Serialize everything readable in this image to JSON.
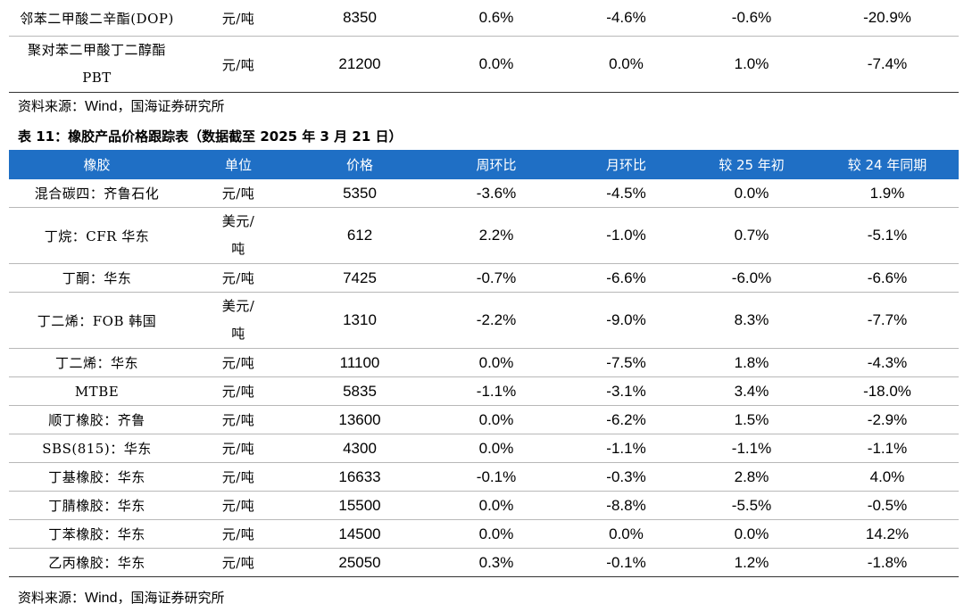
{
  "prev_table": {
    "rows": [
      {
        "name": "邻苯二甲酸二辛酯(DOP)",
        "name_line2": "",
        "unit": "元/吨",
        "unit_line2": "",
        "price": "8350",
        "wow": "0.6%",
        "mom": "-4.6%",
        "ytd": "-0.6%",
        "yoy": "-20.9%"
      },
      {
        "name": "聚对苯二甲酸丁二醇酯",
        "name_line2": "PBT",
        "unit": "元/吨",
        "unit_line2": "",
        "price": "21200",
        "wow": "0.0%",
        "mom": "0.0%",
        "ytd": "1.0%",
        "yoy": "-7.4%"
      }
    ]
  },
  "source_1": {
    "prefix": "资料来源：",
    "wind": "Wind",
    "suffix": "，国海证券研究所"
  },
  "caption": "表 11：橡胶产品价格跟踪表（数据截至 2025 年 3 月 21 日）",
  "rubber_table": {
    "headers": [
      "橡胶",
      "单位",
      "价格",
      "周环比",
      "月环比",
      "较 25 年初",
      "较 24 年同期"
    ],
    "rows": [
      {
        "name": "混合碳四：齐鲁石化",
        "unit": "元/吨",
        "unit_line2": "",
        "price": "5350",
        "wow": "-3.6%",
        "mom": "-4.5%",
        "ytd": "0.0%",
        "yoy": "1.9%"
      },
      {
        "name": "丁烷：CFR 华东",
        "unit": "美元/",
        "unit_line2": "吨",
        "price": "612",
        "wow": "2.2%",
        "mom": "-1.0%",
        "ytd": "0.7%",
        "yoy": "-5.1%"
      },
      {
        "name": "丁酮：华东",
        "unit": "元/吨",
        "unit_line2": "",
        "price": "7425",
        "wow": "-0.7%",
        "mom": "-6.6%",
        "ytd": "-6.0%",
        "yoy": "-6.6%"
      },
      {
        "name": "丁二烯：FOB 韩国",
        "unit": "美元/",
        "unit_line2": "吨",
        "price": "1310",
        "wow": "-2.2%",
        "mom": "-9.0%",
        "ytd": "8.3%",
        "yoy": "-7.7%"
      },
      {
        "name": "丁二烯：华东",
        "unit": "元/吨",
        "unit_line2": "",
        "price": "11100",
        "wow": "0.0%",
        "mom": "-7.5%",
        "ytd": "1.8%",
        "yoy": "-4.3%"
      },
      {
        "name": "MTBE",
        "unit": "元/吨",
        "unit_line2": "",
        "price": "5835",
        "wow": "-1.1%",
        "mom": "-3.1%",
        "ytd": "3.4%",
        "yoy": "-18.0%"
      },
      {
        "name": "顺丁橡胶：齐鲁",
        "unit": "元/吨",
        "unit_line2": "",
        "price": "13600",
        "wow": "0.0%",
        "mom": "-6.2%",
        "ytd": "1.5%",
        "yoy": "-2.9%"
      },
      {
        "name": "SBS(815)：华东",
        "unit": "元/吨",
        "unit_line2": "",
        "price": "4300",
        "wow": "0.0%",
        "mom": "-1.1%",
        "ytd": "-1.1%",
        "yoy": "-1.1%"
      },
      {
        "name": "丁基橡胶：华东",
        "unit": "元/吨",
        "unit_line2": "",
        "price": "16633",
        "wow": "-0.1%",
        "mom": "-0.3%",
        "ytd": "2.8%",
        "yoy": "4.0%"
      },
      {
        "name": "丁腈橡胶：华东",
        "unit": "元/吨",
        "unit_line2": "",
        "price": "15500",
        "wow": "0.0%",
        "mom": "-8.8%",
        "ytd": "-5.5%",
        "yoy": "-0.5%"
      },
      {
        "name": "丁苯橡胶：华东",
        "unit": "元/吨",
        "unit_line2": "",
        "price": "14500",
        "wow": "0.0%",
        "mom": "0.0%",
        "ytd": "0.0%",
        "yoy": "14.2%"
      },
      {
        "name": "乙丙橡胶：华东",
        "unit": "元/吨",
        "unit_line2": "",
        "price": "25050",
        "wow": "0.3%",
        "mom": "-0.1%",
        "ytd": "1.2%",
        "yoy": "-1.8%"
      }
    ]
  },
  "source_2": {
    "prefix": "资料来源：",
    "wind": "Wind",
    "suffix": "，国海证券研究所"
  },
  "colors": {
    "header_bg": "#1f6fc5",
    "header_text": "#ffffff"
  }
}
